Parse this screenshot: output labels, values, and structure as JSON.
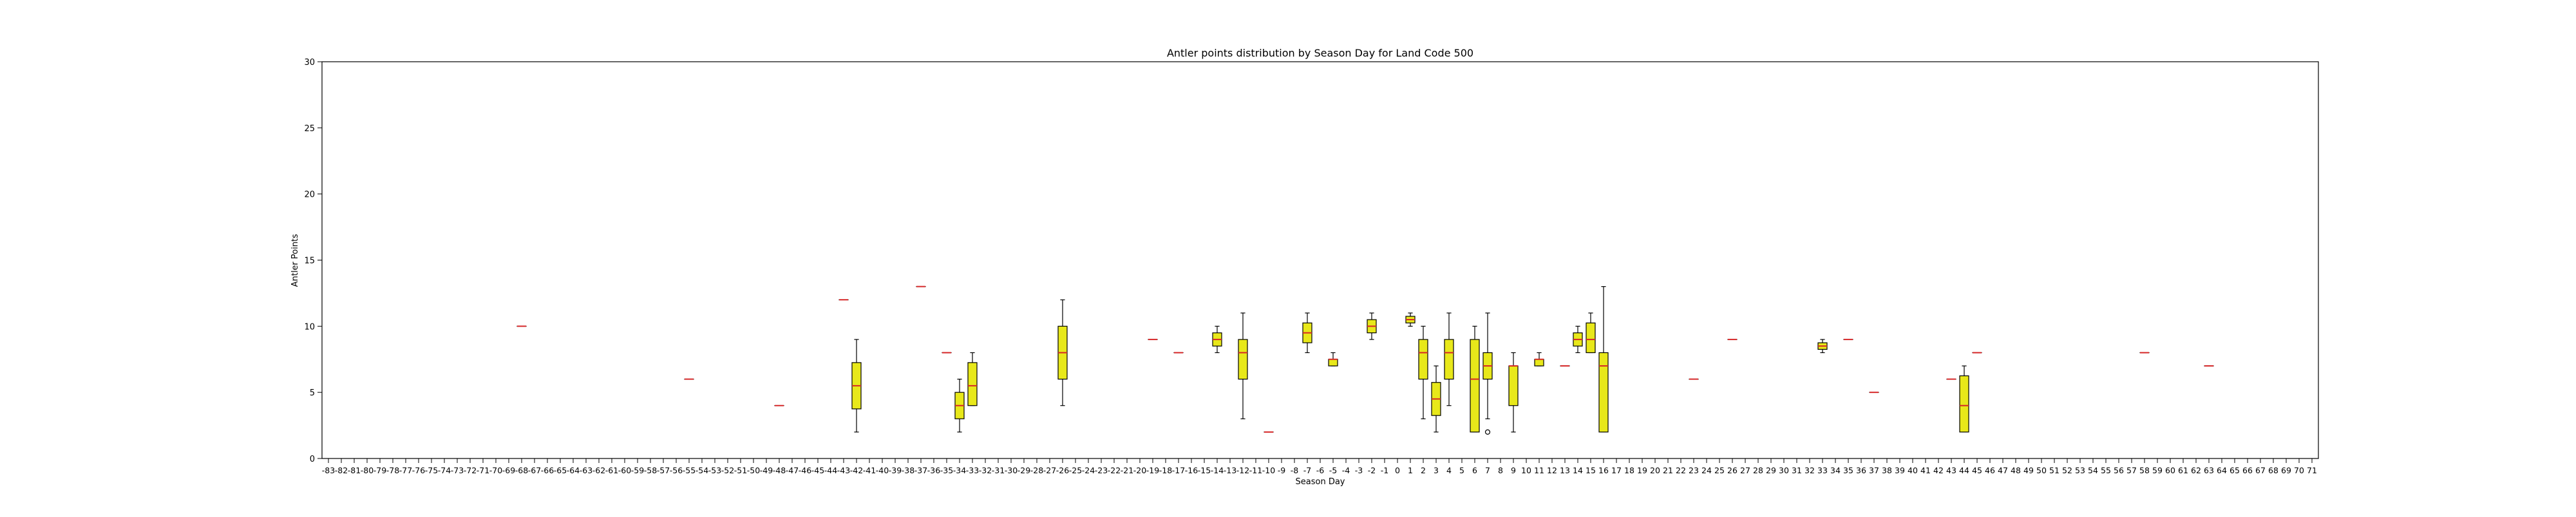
{
  "chart_data": {
    "type": "box",
    "title": "Antler points distribution by Season Day for Land Code 500",
    "xlabel": "Season Day",
    "ylabel": "Antler Points",
    "ylim": [
      0,
      30
    ],
    "yticks": [
      0,
      5,
      10,
      15,
      20,
      25,
      30
    ],
    "categories": [
      "-83",
      "-82",
      "-81",
      "-80",
      "-79",
      "-78",
      "-77",
      "-76",
      "-75",
      "-74",
      "-73",
      "-72",
      "-71",
      "-70",
      "-69",
      "-68",
      "-67",
      "-66",
      "-65",
      "-64",
      "-63",
      "-62",
      "-61",
      "-60",
      "-59",
      "-58",
      "-57",
      "-56",
      "-55",
      "-54",
      "-53",
      "-52",
      "-51",
      "-50",
      "-49",
      "-48",
      "-47",
      "-46",
      "-45",
      "-44",
      "-43",
      "-42",
      "-41",
      "-40",
      "-39",
      "-38",
      "-37",
      "-36",
      "-35",
      "-34",
      "-33",
      "-32",
      "-31",
      "-30",
      "-29",
      "-28",
      "-27",
      "-26",
      "-25",
      "-24",
      "-23",
      "-22",
      "-21",
      "-20",
      "-19",
      "-18",
      "-17",
      "-16",
      "-15",
      "-14",
      "-13",
      "-12",
      "-11",
      "-10",
      "-9",
      "-8",
      "-7",
      "-6",
      "-5",
      "-4",
      "-3",
      "-2",
      "-1",
      "0",
      "1",
      "2",
      "3",
      "4",
      "5",
      "6",
      "7",
      "8",
      "9",
      "10",
      "11",
      "12",
      "13",
      "14",
      "15",
      "16",
      "17",
      "18",
      "19",
      "20",
      "21",
      "22",
      "23",
      "24",
      "25",
      "26",
      "27",
      "28",
      "29",
      "30",
      "31",
      "32",
      "33",
      "34",
      "35",
      "36",
      "37",
      "38",
      "39",
      "40",
      "41",
      "42",
      "43",
      "44",
      "45",
      "46",
      "47",
      "48",
      "49",
      "50",
      "51",
      "52",
      "53",
      "54",
      "55",
      "56",
      "57",
      "58",
      "59",
      "60",
      "61",
      "62",
      "63",
      "64",
      "65",
      "66",
      "67",
      "68",
      "69",
      "70",
      "71"
    ],
    "boxes": [
      {
        "x": "-68",
        "min": 10,
        "q1": 10,
        "median": 10,
        "q3": 10,
        "max": 10
      },
      {
        "x": "-55",
        "min": 6,
        "q1": 6,
        "median": 6,
        "q3": 6,
        "max": 6
      },
      {
        "x": "-48",
        "min": 4,
        "q1": 4,
        "median": 4,
        "q3": 4,
        "max": 4
      },
      {
        "x": "-43",
        "min": 12,
        "q1": 12,
        "median": 12,
        "q3": 12,
        "max": 12
      },
      {
        "x": "-42",
        "min": 2,
        "q1": 3.75,
        "median": 5.5,
        "q3": 7.25,
        "max": 9
      },
      {
        "x": "-37",
        "min": 13,
        "q1": 13,
        "median": 13,
        "q3": 13,
        "max": 13
      },
      {
        "x": "-35",
        "min": 8,
        "q1": 8,
        "median": 8,
        "q3": 8,
        "max": 8
      },
      {
        "x": "-34",
        "min": 2,
        "q1": 3,
        "median": 4,
        "q3": 5,
        "max": 6
      },
      {
        "x": "-33",
        "min": 4,
        "q1": 4,
        "median": 5.5,
        "q3": 7.25,
        "max": 8
      },
      {
        "x": "-26",
        "min": 4,
        "q1": 6,
        "median": 8,
        "q3": 10,
        "max": 12
      },
      {
        "x": "-19",
        "min": 9,
        "q1": 9,
        "median": 9,
        "q3": 9,
        "max": 9
      },
      {
        "x": "-17",
        "min": 8,
        "q1": 8,
        "median": 8,
        "q3": 8,
        "max": 8
      },
      {
        "x": "-14",
        "min": 8,
        "q1": 8.5,
        "median": 9,
        "q3": 9.5,
        "max": 10
      },
      {
        "x": "-12",
        "min": 3,
        "q1": 6,
        "median": 8,
        "q3": 9,
        "max": 11
      },
      {
        "x": "-10",
        "min": 2,
        "q1": 2,
        "median": 2,
        "q3": 2,
        "max": 2
      },
      {
        "x": "-7",
        "min": 8,
        "q1": 8.75,
        "median": 9.5,
        "q3": 10.25,
        "max": 11
      },
      {
        "x": "-5",
        "min": 7,
        "q1": 7,
        "median": 7.5,
        "q3": 7.5,
        "max": 8
      },
      {
        "x": "-2",
        "min": 9,
        "q1": 9.5,
        "median": 10,
        "q3": 10.5,
        "max": 11
      },
      {
        "x": "1",
        "min": 10,
        "q1": 10.25,
        "median": 10.5,
        "q3": 10.75,
        "max": 11
      },
      {
        "x": "2",
        "min": 3,
        "q1": 6,
        "median": 8,
        "q3": 9,
        "max": 10
      },
      {
        "x": "3",
        "min": 2,
        "q1": 3.25,
        "median": 4.5,
        "q3": 5.75,
        "max": 7
      },
      {
        "x": "4",
        "min": 4,
        "q1": 6,
        "median": 8,
        "q3": 9,
        "max": 11
      },
      {
        "x": "6",
        "min": 2,
        "q1": 2,
        "median": 6,
        "q3": 9,
        "max": 10
      },
      {
        "x": "7",
        "min": 3,
        "q1": 6,
        "median": 7,
        "q3": 8,
        "max": 11,
        "outliers": [
          2
        ]
      },
      {
        "x": "9",
        "min": 2,
        "q1": 4,
        "median": 7,
        "q3": 7,
        "max": 8
      },
      {
        "x": "11",
        "min": 7,
        "q1": 7,
        "median": 7.5,
        "q3": 7.5,
        "max": 8
      },
      {
        "x": "13",
        "min": 7,
        "q1": 7,
        "median": 7,
        "q3": 7,
        "max": 7
      },
      {
        "x": "14",
        "min": 8,
        "q1": 8.5,
        "median": 9,
        "q3": 9.5,
        "max": 10
      },
      {
        "x": "15",
        "min": 8,
        "q1": 8,
        "median": 9,
        "q3": 10.25,
        "max": 11
      },
      {
        "x": "16",
        "min": 2,
        "q1": 2,
        "median": 7,
        "q3": 8,
        "max": 13
      },
      {
        "x": "23",
        "min": 6,
        "q1": 6,
        "median": 6,
        "q3": 6,
        "max": 6
      },
      {
        "x": "26",
        "min": 9,
        "q1": 9,
        "median": 9,
        "q3": 9,
        "max": 9
      },
      {
        "x": "33",
        "min": 8,
        "q1": 8.25,
        "median": 8.5,
        "q3": 8.75,
        "max": 9
      },
      {
        "x": "35",
        "min": 9,
        "q1": 9,
        "median": 9,
        "q3": 9,
        "max": 9
      },
      {
        "x": "37",
        "min": 5,
        "q1": 5,
        "median": 5,
        "q3": 5,
        "max": 5
      },
      {
        "x": "43",
        "min": 6,
        "q1": 6,
        "median": 6,
        "q3": 6,
        "max": 6
      },
      {
        "x": "44",
        "min": 2,
        "q1": 2,
        "median": 4,
        "q3": 6.25,
        "max": 7
      },
      {
        "x": "45",
        "min": 8,
        "q1": 8,
        "median": 8,
        "q3": 8,
        "max": 8
      },
      {
        "x": "58",
        "min": 8,
        "q1": 8,
        "median": 8,
        "q3": 8,
        "max": 8
      },
      {
        "x": "63",
        "min": 7,
        "q1": 7,
        "median": 7,
        "q3": 7,
        "max": 7
      }
    ],
    "grid": false,
    "colors": {
      "box_fill": "#e8e81a",
      "box_edge": "#000000",
      "median": "#d62728",
      "whisker": "#000000"
    }
  }
}
